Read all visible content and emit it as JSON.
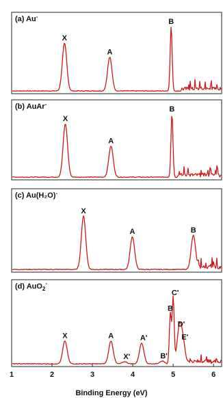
{
  "chart_data": {
    "type": "line",
    "xlabel": "Binding Energy (eV)",
    "x_ticks": [
      1,
      2,
      3,
      4,
      5,
      6
    ],
    "xlim": [
      1,
      6.2
    ],
    "panels": [
      {
        "title": "(a) Au",
        "title_sup": "-",
        "peaks": [
          {
            "label": "X",
            "x": 2.31,
            "height": 0.72
          },
          {
            "label": "A",
            "x": 3.43,
            "height": 0.51
          },
          {
            "label": "B",
            "x": 4.95,
            "height": 0.97
          }
        ],
        "noise_start": 5.2
      },
      {
        "title": "(b) AuAr",
        "title_sup": "-",
        "peaks": [
          {
            "label": "X",
            "x": 2.33,
            "height": 0.82
          },
          {
            "label": "A",
            "x": 3.46,
            "height": 0.48
          },
          {
            "label": "B",
            "x": 4.97,
            "height": 0.97
          }
        ],
        "noise_start": 5.1
      },
      {
        "title": "(c) Au(H₂O)",
        "title_sup": "-",
        "peaks": [
          {
            "label": "X",
            "x": 2.78,
            "height": 0.78
          },
          {
            "label": "A",
            "x": 3.99,
            "height": 0.48
          },
          {
            "label": "B",
            "x": 5.5,
            "height": 0.5
          }
        ],
        "noise_start": 5.6
      },
      {
        "title": "(d) AuO",
        "title_sub": "2",
        "title_sup": "-",
        "peaks": [
          {
            "label": "X",
            "x": 2.32,
            "height": 0.32
          },
          {
            "label": "A",
            "x": 3.46,
            "height": 0.32
          },
          {
            "label": "X'",
            "x": 3.8,
            "height": 0.03
          },
          {
            "label": "A'",
            "x": 4.22,
            "height": 0.29
          },
          {
            "label": "B'",
            "x": 4.72,
            "height": 0.04
          },
          {
            "label": "B",
            "x": 4.93,
            "height": 0.7
          },
          {
            "label": "C'",
            "x": 5.0,
            "height": 0.92
          },
          {
            "label": "D'",
            "x": 5.15,
            "height": 0.48
          },
          {
            "label": "E'",
            "x": 5.24,
            "height": 0.3
          }
        ],
        "noise_start": 5.35
      }
    ]
  }
}
